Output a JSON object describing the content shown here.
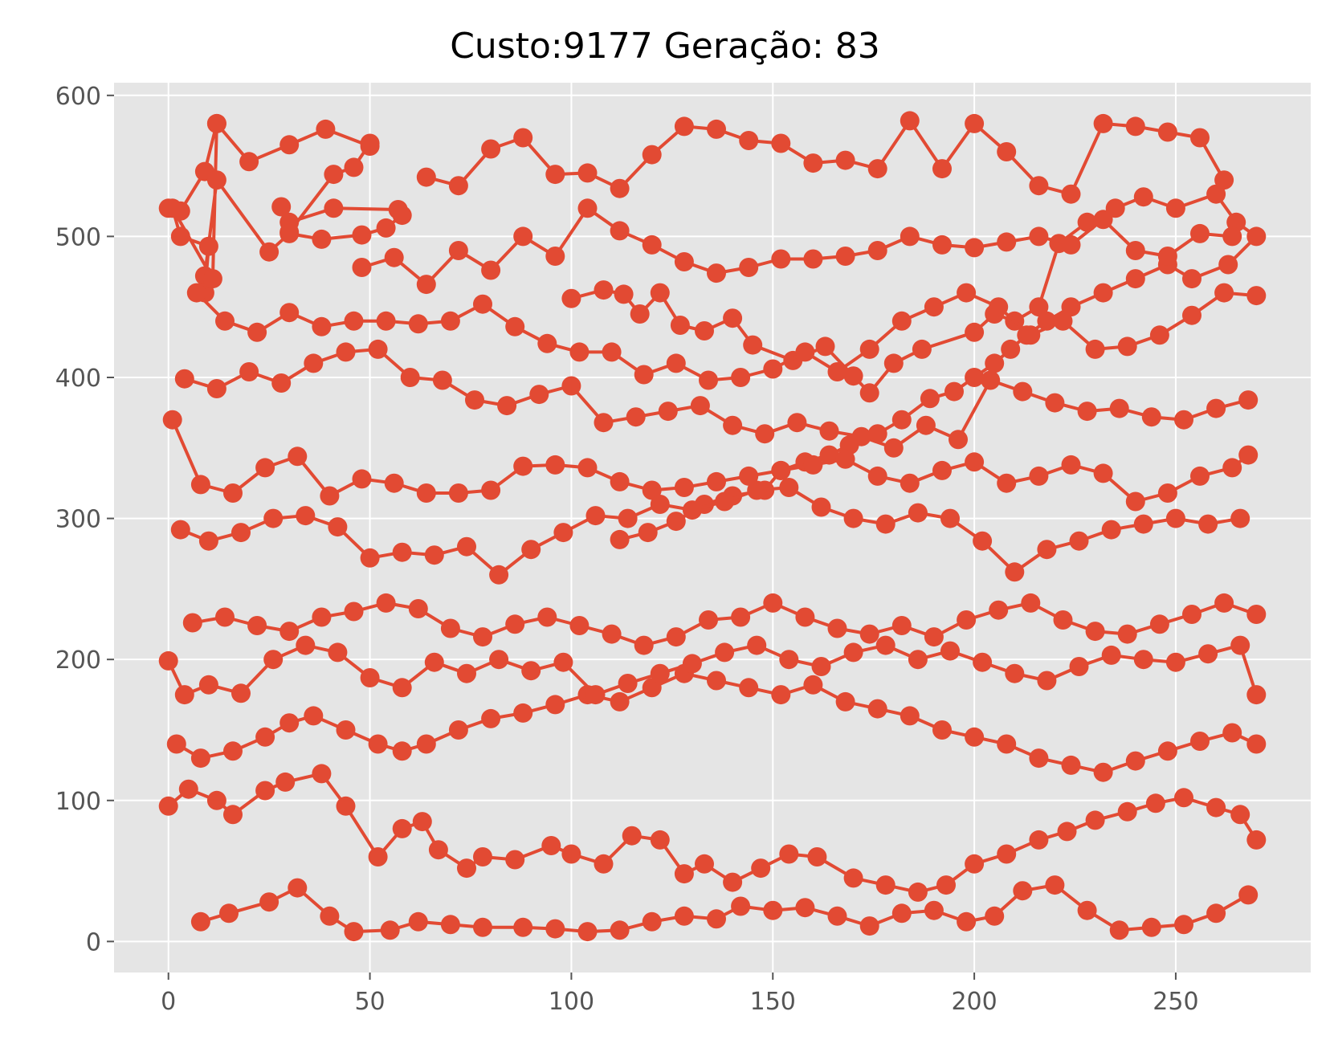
{
  "chart_data": {
    "type": "line",
    "title": "Custo:9177 Geração: 83",
    "xlabel": "",
    "ylabel": "",
    "xlim": [
      -13.5,
      283.5
    ],
    "ylim": [
      -22,
      609
    ],
    "xticks": [
      0,
      50,
      100,
      150,
      200,
      250
    ],
    "yticks": [
      0,
      100,
      200,
      300,
      400,
      500,
      600
    ],
    "grid": true,
    "legend": "none",
    "colors": {
      "series": "#e24a33",
      "plot_background": "#e5e5e5",
      "grid": "#ffffff",
      "tick": "#555555"
    },
    "series": [
      {
        "x": [
          0,
          3,
          9,
          12,
          20,
          30,
          39,
          50,
          50,
          46,
          41,
          30,
          28,
          30,
          41,
          57,
          58,
          54,
          48,
          38,
          30,
          25,
          12,
          9,
          9,
          10,
          3,
          1,
          11,
          12
        ],
        "y": [
          520,
          518,
          546,
          580,
          553,
          565,
          576,
          564,
          566,
          549,
          544,
          503,
          521,
          510,
          520,
          519,
          515,
          506,
          501,
          498,
          502,
          489,
          540,
          472,
          460,
          493,
          500,
          520,
          470,
          580
        ]
      },
      {
        "x": [
          100,
          108,
          113,
          117,
          122,
          127,
          133,
          140,
          145,
          155,
          163,
          170,
          174,
          180,
          187,
          200,
          205,
          210,
          216,
          221,
          228,
          235,
          242,
          250,
          260,
          265,
          270,
          263,
          254,
          248,
          240,
          232,
          224,
          218,
          213,
          209,
          205,
          200,
          195,
          189,
          182,
          176,
          169,
          164,
          158,
          152,
          148,
          140,
          133,
          126,
          119,
          112
        ],
        "y": [
          456,
          462,
          459,
          445,
          460,
          437,
          433,
          442,
          423,
          412,
          422,
          401,
          389,
          410,
          420,
          432,
          445,
          440,
          450,
          495,
          510,
          520,
          528,
          520,
          530,
          510,
          500,
          480,
          470,
          480,
          470,
          460,
          450,
          440,
          430,
          420,
          410,
          400,
          390,
          385,
          370,
          360,
          352,
          345,
          340,
          334,
          320,
          316,
          310,
          298,
          290,
          285
        ]
      },
      {
        "x": [
          0,
          5,
          12,
          16,
          24,
          29,
          38,
          44,
          52,
          58,
          63,
          67,
          74,
          78,
          86,
          95,
          100,
          108,
          115,
          122,
          128,
          133,
          140,
          147,
          154,
          161,
          170,
          178,
          186,
          193,
          200,
          208,
          216,
          223,
          230,
          238,
          245,
          252,
          260,
          266,
          270
        ],
        "y": [
          96,
          108,
          100,
          90,
          107,
          113,
          119,
          96,
          60,
          80,
          85,
          65,
          52,
          60,
          58,
          68,
          62,
          55,
          75,
          72,
          48,
          55,
          42,
          52,
          62,
          60,
          45,
          40,
          35,
          40,
          55,
          62,
          72,
          78,
          86,
          92,
          98,
          102,
          95,
          90,
          72
        ]
      },
      {
        "x": [
          8,
          15,
          25,
          32,
          40,
          46,
          55,
          62,
          70,
          78,
          88,
          96,
          104,
          112,
          120,
          128,
          136,
          142,
          150,
          158,
          166,
          174,
          182,
          190,
          198,
          205,
          212,
          220,
          228,
          236,
          244,
          252,
          260,
          268
        ],
        "y": [
          14,
          20,
          28,
          38,
          18,
          7,
          8,
          14,
          12,
          10,
          10,
          9,
          7,
          8,
          14,
          18,
          16,
          25,
          22,
          24,
          18,
          11,
          20,
          22,
          14,
          18,
          36,
          40,
          22,
          8,
          10,
          12,
          20,
          33
        ]
      },
      {
        "x": [
          2,
          8,
          16,
          24,
          30,
          36,
          44,
          52,
          58,
          64,
          72,
          80,
          88,
          96,
          104,
          112,
          120,
          128,
          136,
          144,
          152,
          160,
          168,
          176,
          184,
          192,
          200,
          208,
          216,
          224,
          232,
          240,
          248,
          256,
          264,
          270
        ],
        "y": [
          140,
          130,
          135,
          145,
          155,
          160,
          150,
          140,
          135,
          140,
          150,
          158,
          162,
          168,
          175,
          170,
          180,
          190,
          185,
          180,
          175,
          182,
          170,
          165,
          160,
          150,
          145,
          140,
          130,
          125,
          120,
          128,
          135,
          142,
          148,
          140
        ]
      },
      {
        "x": [
          0,
          4,
          10,
          18,
          26,
          34,
          42,
          50,
          58,
          66,
          74,
          82,
          90,
          98,
          106,
          114,
          122,
          130,
          138,
          146,
          154,
          162,
          170,
          178,
          186,
          194,
          202,
          210,
          218,
          226,
          234,
          242,
          250,
          258,
          266,
          270
        ],
        "y": [
          199,
          175,
          182,
          176,
          200,
          210,
          205,
          187,
          180,
          198,
          190,
          200,
          192,
          198,
          175,
          183,
          190,
          197,
          205,
          210,
          200,
          195,
          205,
          210,
          200,
          206,
          198,
          190,
          185,
          195,
          203,
          200,
          198,
          204,
          210,
          175
        ]
      },
      {
        "x": [
          6,
          14,
          22,
          30,
          38,
          46,
          54,
          62,
          70,
          78,
          86,
          94,
          102,
          110,
          118,
          126,
          134,
          142,
          150,
          158,
          166,
          174,
          182,
          190,
          198,
          206,
          214,
          222,
          230,
          238,
          246,
          254,
          262,
          270
        ],
        "y": [
          226,
          230,
          224,
          220,
          230,
          234,
          240,
          236,
          222,
          216,
          225,
          230,
          224,
          218,
          210,
          216,
          228,
          230,
          240,
          230,
          222,
          218,
          224,
          216,
          228,
          235,
          240,
          228,
          220,
          218,
          225,
          232,
          240,
          232
        ]
      },
      {
        "x": [
          3,
          10,
          18,
          26,
          34,
          42,
          50,
          58,
          66,
          74,
          82,
          90,
          98,
          106,
          114,
          122,
          130,
          138,
          146,
          154,
          162,
          170,
          178,
          186,
          194,
          202,
          210,
          218,
          226,
          234,
          242,
          250,
          258,
          266
        ],
        "y": [
          292,
          284,
          290,
          300,
          302,
          294,
          272,
          276,
          274,
          280,
          260,
          278,
          290,
          302,
          300,
          310,
          306,
          312,
          320,
          322,
          308,
          300,
          296,
          304,
          300,
          284,
          262,
          278,
          284,
          292,
          296,
          300,
          296,
          300
        ]
      },
      {
        "x": [
          1,
          8,
          16,
          24,
          32,
          40,
          48,
          56,
          64,
          72,
          80,
          88,
          96,
          104,
          112,
          120,
          128,
          136,
          144,
          152,
          160,
          168,
          176,
          184,
          192,
          200,
          208,
          216,
          224,
          232,
          240,
          248,
          256,
          264,
          268
        ],
        "y": [
          370,
          324,
          318,
          336,
          344,
          316,
          328,
          325,
          318,
          318,
          320,
          337,
          338,
          336,
          326,
          320,
          322,
          326,
          330,
          334,
          338,
          342,
          330,
          325,
          334,
          340,
          325,
          330,
          338,
          332,
          312,
          318,
          330,
          336,
          345
        ]
      },
      {
        "x": [
          4,
          12,
          20,
          28,
          36,
          44,
          52,
          60,
          68,
          76,
          84,
          92,
          100,
          108,
          116,
          124,
          132,
          140,
          148,
          156,
          164,
          172,
          180,
          188,
          196,
          204,
          212,
          220,
          228,
          236,
          244,
          252,
          260,
          268
        ],
        "y": [
          399,
          392,
          404,
          396,
          410,
          418,
          420,
          400,
          398,
          384,
          380,
          388,
          394,
          368,
          372,
          376,
          380,
          366,
          360,
          368,
          362,
          358,
          350,
          366,
          356,
          398,
          390,
          382,
          376,
          378,
          372,
          370,
          378,
          384
        ]
      },
      {
        "x": [
          7,
          14,
          22,
          30,
          38,
          46,
          54,
          62,
          70,
          78,
          86,
          94,
          102,
          110,
          118,
          126,
          134,
          142,
          150,
          158,
          166,
          174,
          182,
          190,
          198,
          206,
          214,
          222,
          230,
          238,
          246,
          254,
          262,
          270
        ],
        "y": [
          460,
          440,
          432,
          446,
          436,
          440,
          440,
          438,
          440,
          452,
          436,
          424,
          418,
          418,
          402,
          410,
          398,
          400,
          406,
          418,
          404,
          420,
          440,
          450,
          460,
          450,
          430,
          440,
          420,
          422,
          430,
          444,
          460,
          458
        ]
      },
      {
        "x": [
          48,
          56,
          64,
          72,
          80,
          88,
          96,
          104,
          112,
          120,
          128,
          136,
          144,
          152,
          160,
          168,
          176,
          184,
          192,
          200,
          208,
          216,
          224,
          232,
          240,
          248,
          256,
          264
        ],
        "y": [
          478,
          485,
          466,
          490,
          476,
          500,
          486,
          520,
          504,
          494,
          482,
          474,
          478,
          484,
          484,
          486,
          490,
          500,
          494,
          492,
          496,
          500,
          494,
          512,
          490,
          486,
          502,
          500
        ]
      },
      {
        "x": [
          64,
          72,
          80,
          88,
          96,
          104,
          112,
          120,
          128,
          136,
          144,
          152,
          160,
          168,
          176,
          184,
          192,
          200,
          208,
          216,
          224,
          232,
          240,
          248,
          256,
          262
        ],
        "y": [
          542,
          536,
          562,
          570,
          544,
          545,
          534,
          558,
          578,
          576,
          568,
          566,
          552,
          554,
          548,
          582,
          548,
          580,
          560,
          536,
          530,
          580,
          578,
          574,
          570,
          540
        ]
      }
    ]
  }
}
